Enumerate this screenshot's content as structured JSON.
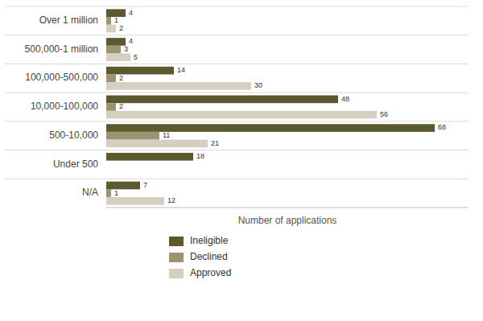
{
  "chart_data": {
    "type": "bar",
    "orientation": "horizontal",
    "categories": [
      "N/A",
      "Under 500",
      "500-10,000",
      "10,000-100,000",
      "100,000-500,000",
      "500,000-1 million",
      "Over 1 million"
    ],
    "series": [
      {
        "name": "Ineligible",
        "color": "#5b5a2f",
        "values": [
          7,
          18,
          68,
          48,
          14,
          4,
          4
        ],
        "value_labels": [
          "7",
          "18",
          "68",
          "48",
          "14",
          "4",
          "4"
        ]
      },
      {
        "name": "Declined",
        "color": "#9c9470",
        "values": [
          1,
          0,
          11,
          2,
          2,
          3,
          1
        ],
        "value_labels": [
          "1",
          null,
          "11",
          "2",
          "2",
          "3",
          "1"
        ]
      },
      {
        "name": "Approved",
        "color": "#d4cfc0",
        "values": [
          12,
          0,
          21,
          56,
          30,
          5,
          2
        ],
        "value_labels": [
          "12",
          null,
          "21",
          "56",
          "30",
          "5",
          "2"
        ]
      }
    ],
    "xlabel": "Number of applications",
    "xlim": [
      0,
      75
    ],
    "data_labels": true,
    "tick_labels": "y",
    "grid": false,
    "legend": "bottom"
  }
}
